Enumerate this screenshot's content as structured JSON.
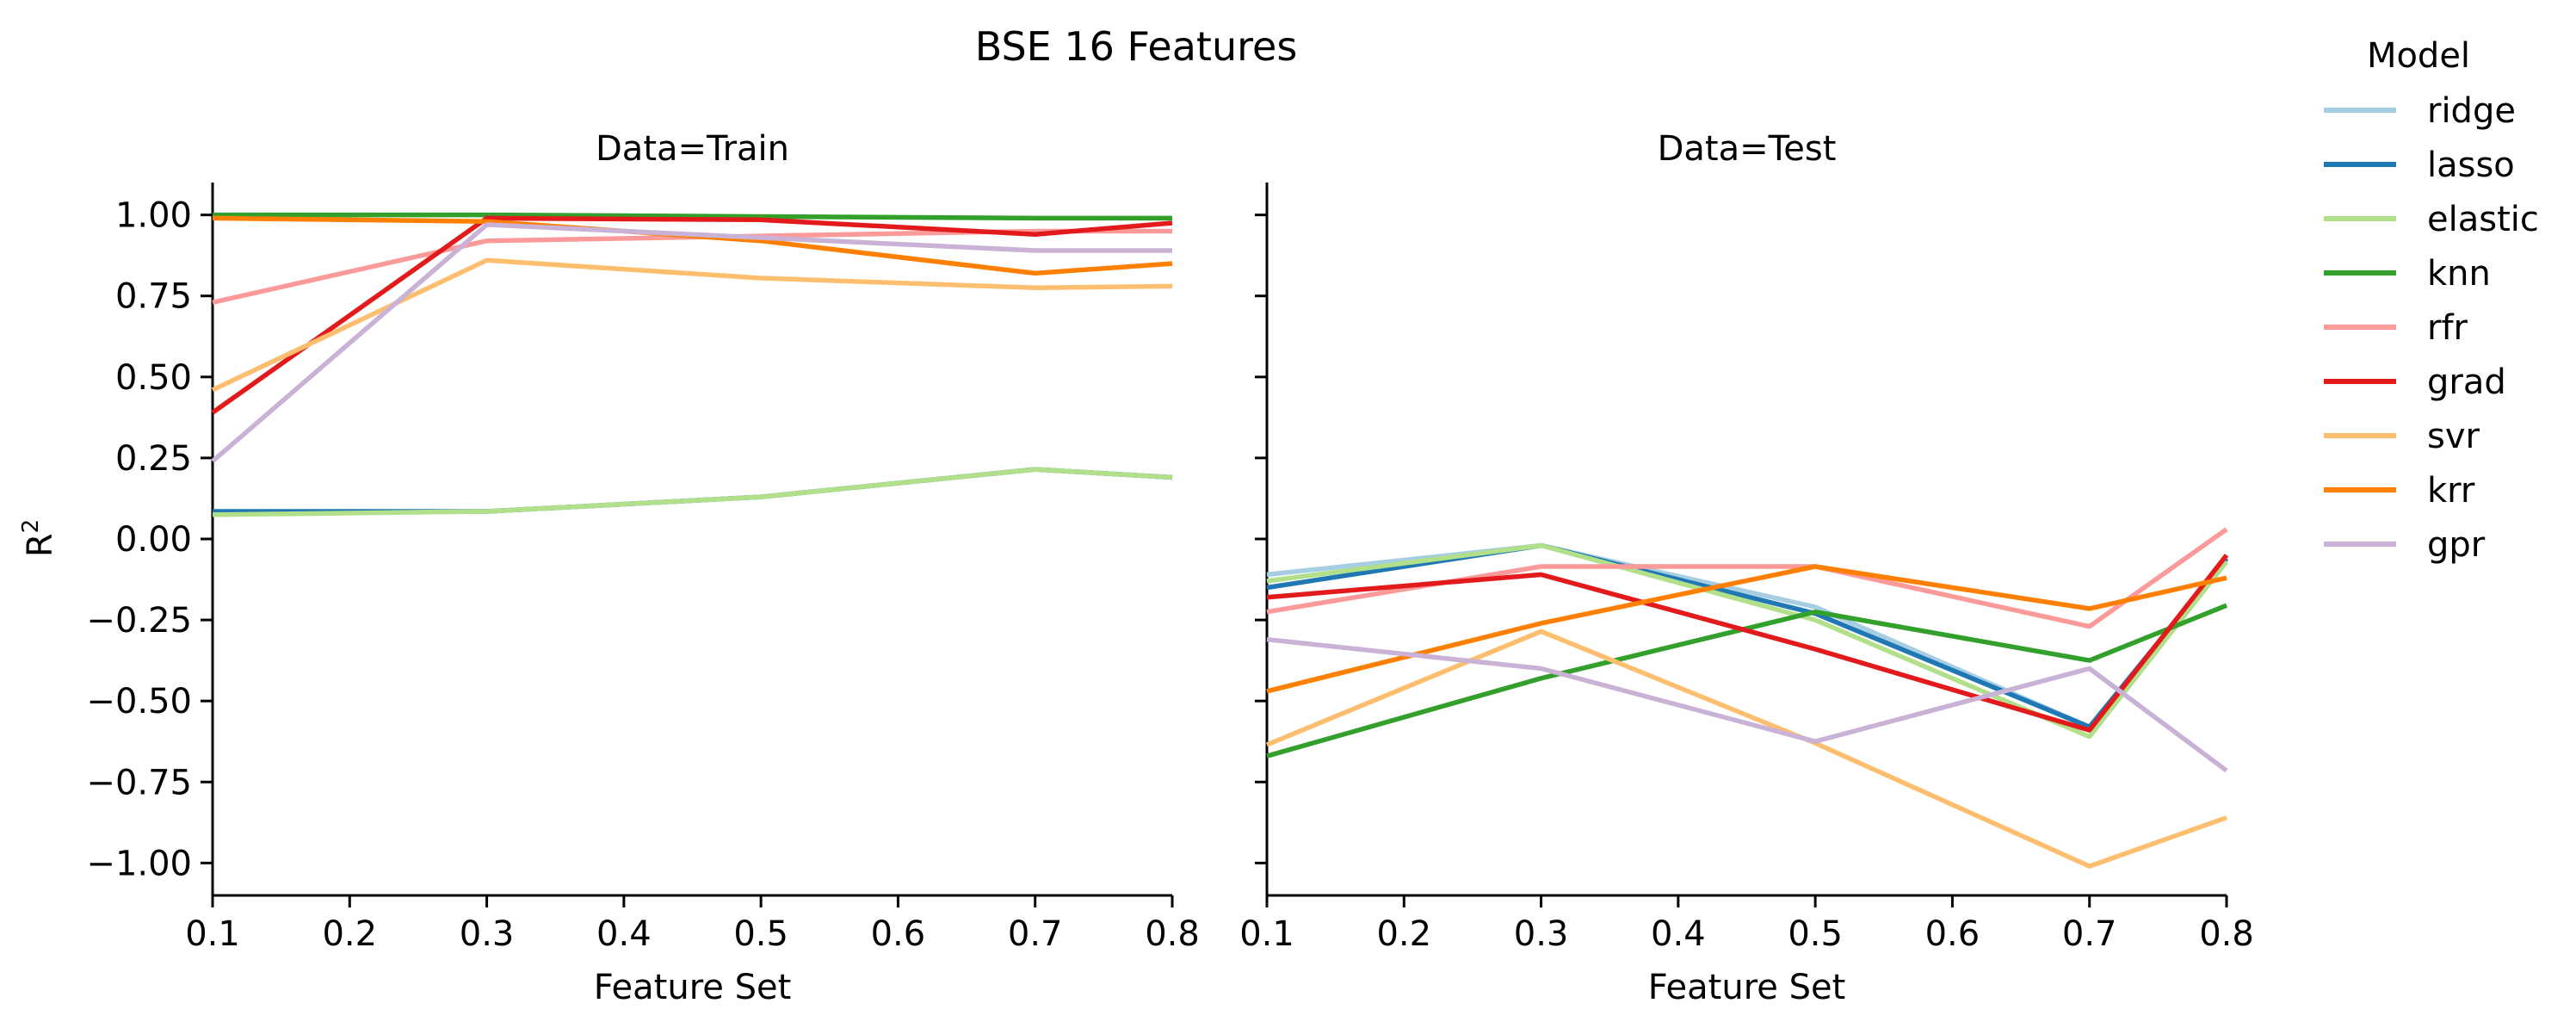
{
  "chart_data": {
    "type": "line",
    "title": "BSE 16 Features",
    "ylabel": "R",
    "ylabel_superscript": "2",
    "xlabel": "Feature Set",
    "x": [
      0.1,
      0.3,
      0.5,
      0.7,
      0.8
    ],
    "xlim": [
      0.1,
      0.8
    ],
    "ylim": [
      -1.1,
      1.1
    ],
    "xticks": [
      "0.1",
      "0.2",
      "0.3",
      "0.4",
      "0.5",
      "0.6",
      "0.7",
      "0.8"
    ],
    "yticks": [
      "1.00",
      "0.75",
      "0.50",
      "0.25",
      "0.00",
      "−0.25",
      "−0.50",
      "−0.75",
      "−1.00"
    ],
    "grid": false,
    "legend": {
      "title": "Model",
      "placement": "right"
    },
    "facets": [
      {
        "title": "Data=Train",
        "series": [
          {
            "name": "ridge",
            "color": "#a6cee3",
            "values": [
              0.08,
              0.085,
              0.13,
              0.215,
              0.19
            ]
          },
          {
            "name": "lasso",
            "color": "#1f78b4",
            "values": [
              0.085,
              0.085,
              0.13,
              0.215,
              0.19
            ]
          },
          {
            "name": "elastic",
            "color": "#b2df8a",
            "values": [
              0.075,
              0.085,
              0.13,
              0.215,
              0.19
            ]
          },
          {
            "name": "knn",
            "color": "#33a02c",
            "values": [
              1.0,
              1.0,
              0.995,
              0.99,
              0.99
            ]
          },
          {
            "name": "rfr",
            "color": "#fb9a99",
            "values": [
              0.73,
              0.92,
              0.935,
              0.95,
              0.95
            ]
          },
          {
            "name": "grad",
            "color": "#e31a1c",
            "values": [
              0.39,
              0.99,
              0.985,
              0.94,
              0.975
            ]
          },
          {
            "name": "svr",
            "color": "#fdbf6f",
            "values": [
              0.46,
              0.86,
              0.805,
              0.775,
              0.78
            ]
          },
          {
            "name": "krr",
            "color": "#ff7f00",
            "values": [
              0.99,
              0.98,
              0.92,
              0.82,
              0.85
            ]
          },
          {
            "name": "gpr",
            "color": "#cab2d6",
            "values": [
              0.24,
              0.97,
              0.93,
              0.89,
              0.89
            ]
          }
        ]
      },
      {
        "title": "Data=Test",
        "series": [
          {
            "name": "ridge",
            "color": "#a6cee3",
            "values": [
              -0.11,
              -0.02,
              -0.21,
              -0.58,
              -0.06
            ]
          },
          {
            "name": "lasso",
            "color": "#1f78b4",
            "values": [
              -0.15,
              -0.02,
              -0.23,
              -0.58,
              -0.06
            ]
          },
          {
            "name": "elastic",
            "color": "#b2df8a",
            "values": [
              -0.13,
              -0.02,
              -0.25,
              -0.61,
              -0.07
            ]
          },
          {
            "name": "knn",
            "color": "#33a02c",
            "values": [
              -0.67,
              -0.43,
              -0.225,
              -0.375,
              -0.205
            ]
          },
          {
            "name": "rfr",
            "color": "#fb9a99",
            "values": [
              -0.225,
              -0.085,
              -0.085,
              -0.27,
              0.03
            ]
          },
          {
            "name": "grad",
            "color": "#e31a1c",
            "values": [
              -0.18,
              -0.11,
              -0.34,
              -0.59,
              -0.05
            ]
          },
          {
            "name": "svr",
            "color": "#fdbf6f",
            "values": [
              -0.635,
              -0.285,
              -0.63,
              -1.01,
              -0.86
            ]
          },
          {
            "name": "krr",
            "color": "#ff7f00",
            "values": [
              -0.47,
              -0.26,
              -0.085,
              -0.215,
              -0.12
            ]
          },
          {
            "name": "gpr",
            "color": "#cab2d6",
            "values": [
              -0.31,
              -0.4,
              -0.625,
              -0.4,
              -0.715
            ]
          }
        ]
      }
    ]
  }
}
